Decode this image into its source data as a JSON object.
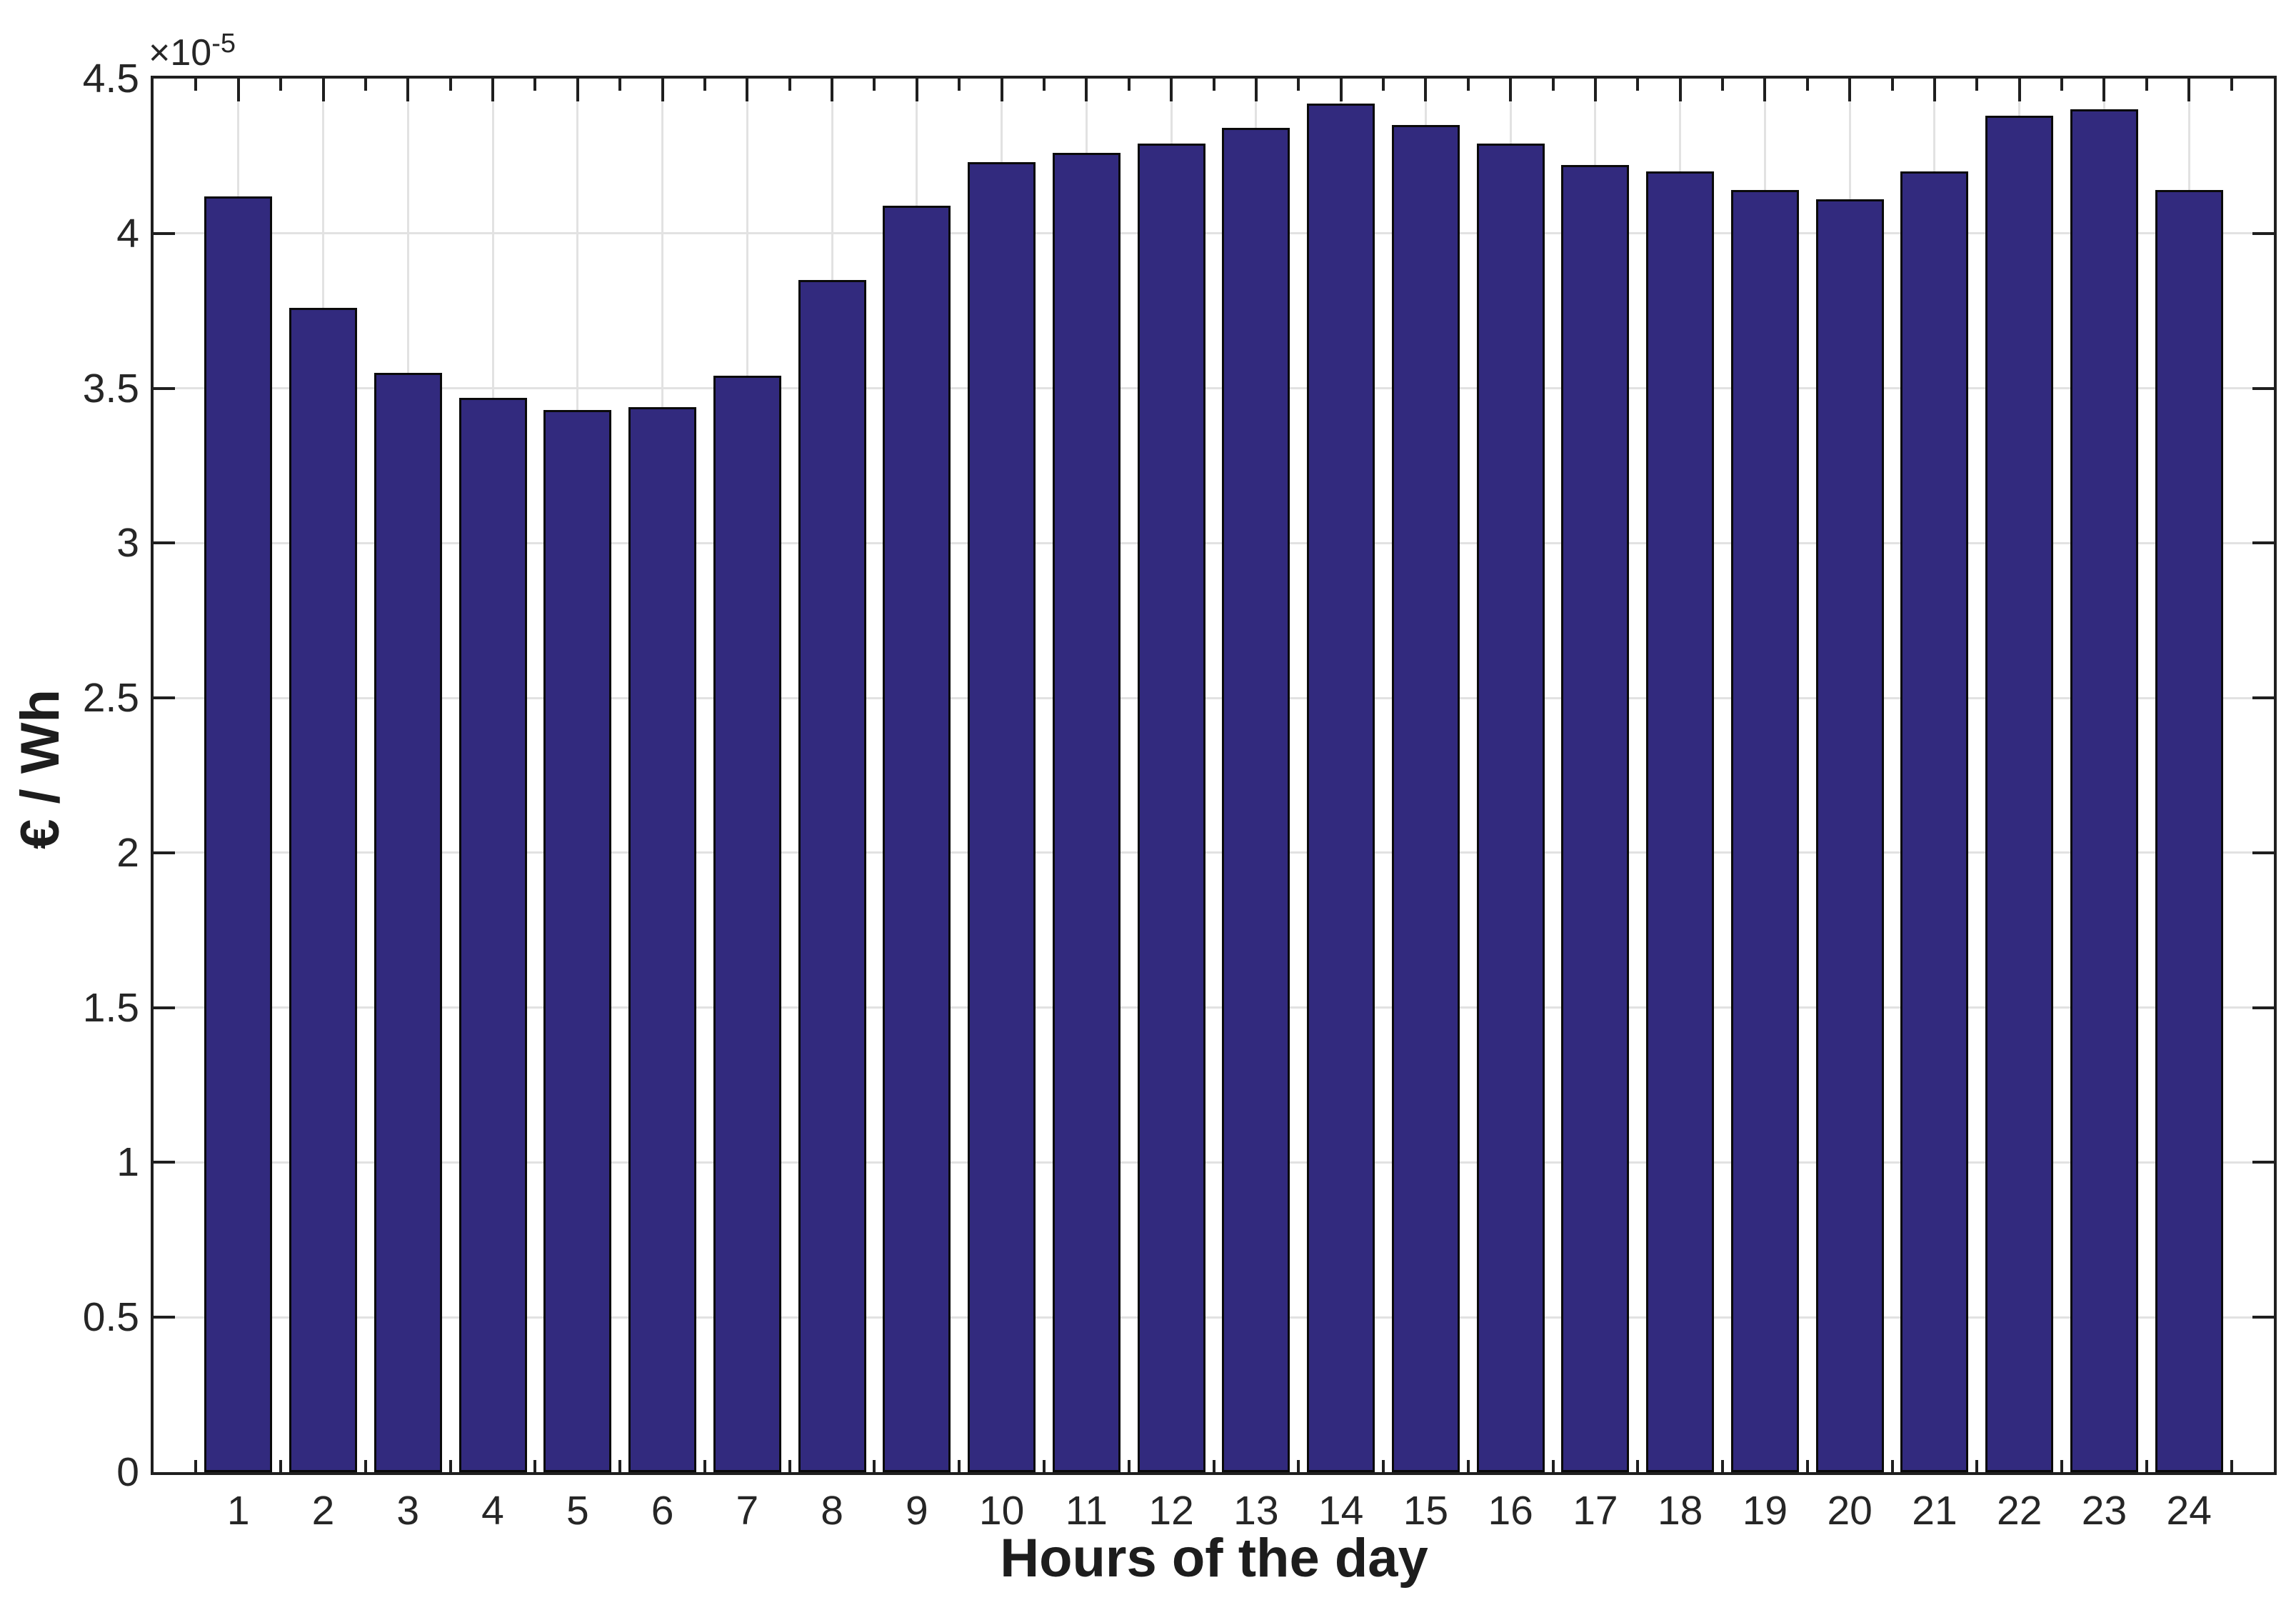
{
  "figure": {
    "background": "#ffffff",
    "exponent_coefficient": "×10",
    "exponent_power": "-5"
  },
  "chart_data": {
    "type": "bar",
    "title": "",
    "xlabel": "Hours of the day",
    "ylabel": "€ / Wh",
    "y_multiplier": "1e-5",
    "categories": [
      1,
      2,
      3,
      4,
      5,
      6,
      7,
      8,
      9,
      10,
      11,
      12,
      13,
      14,
      15,
      16,
      17,
      18,
      19,
      20,
      21,
      22,
      23,
      24
    ],
    "values": [
      4.12,
      3.76,
      3.55,
      3.47,
      3.43,
      3.44,
      3.54,
      3.85,
      4.09,
      4.23,
      4.26,
      4.29,
      4.34,
      4.42,
      4.35,
      4.29,
      4.22,
      4.2,
      4.14,
      4.11,
      4.2,
      4.38,
      4.4,
      4.14
    ],
    "ylim": [
      0,
      4.5
    ],
    "xlim": [
      0,
      25
    ],
    "ytick_step": 0.5,
    "ytick_labels": [
      "0",
      "0.5",
      "1",
      "1.5",
      "2",
      "2.5",
      "3",
      "3.5",
      "4",
      "4.5"
    ],
    "grid": true,
    "legend": null,
    "bar_width_fraction": 0.8,
    "colors": {
      "bar_fill": "#322A7E",
      "bar_edge": "#0a0a0a",
      "axis_frame": "#1f1f1f",
      "tick": "#1f1f1f",
      "grid": "#e2e2e2",
      "text": "#262626"
    }
  }
}
